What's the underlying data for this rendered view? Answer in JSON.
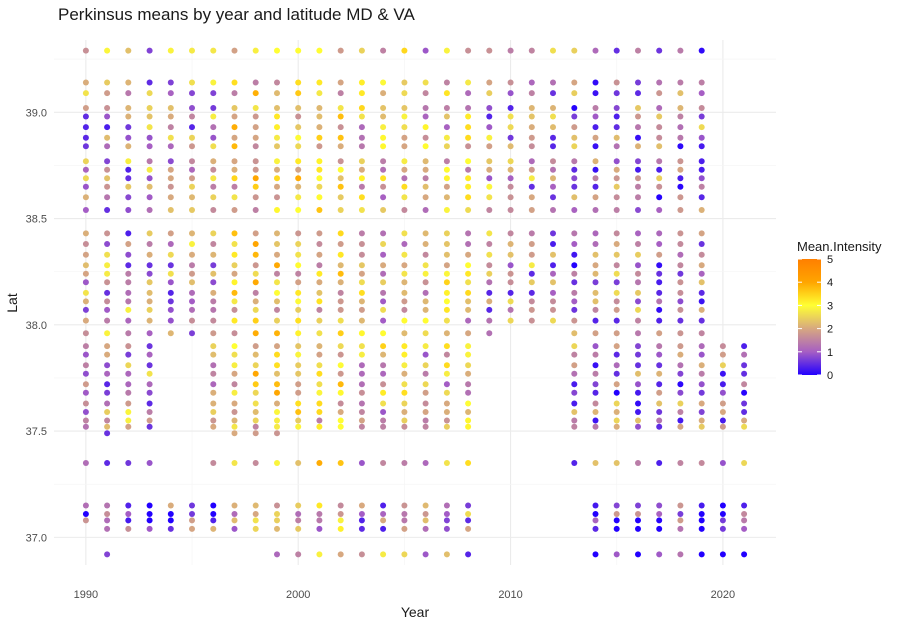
{
  "chart_data": {
    "type": "scatter",
    "title": "Perkinsus means by year and latitude MD & VA",
    "xlabel": "Year",
    "ylabel": "Lat",
    "xlim": [
      1988.5,
      2022.5
    ],
    "ylim": [
      36.87,
      39.34
    ],
    "x_ticks": [
      1990,
      2000,
      2010,
      2020
    ],
    "y_ticks": [
      37.0,
      37.5,
      38.0,
      38.5,
      39.0
    ],
    "y_tick_labels": [
      "37.0",
      "37.5",
      "38.0",
      "38.5",
      "39.0"
    ],
    "grid": true,
    "legend": {
      "title": "Mean.Intensity",
      "placement": "right",
      "min": 0,
      "max": 5,
      "ticks": [
        0,
        1,
        2,
        3,
        4,
        5
      ],
      "colors": [
        "#2200ff",
        "#a65ec4",
        "#d7a880",
        "#ffff33",
        "#ffa500",
        "#ff7f00"
      ]
    },
    "stations": [
      {
        "lat": 39.29,
        "years": [
          1990,
          2019
        ]
      },
      {
        "lat": 39.14,
        "years": [
          1990,
          2019
        ]
      },
      {
        "lat": 39.09,
        "years": [
          1990,
          2019
        ]
      },
      {
        "lat": 39.02,
        "years": [
          1990,
          2019
        ]
      },
      {
        "lat": 38.98,
        "years": [
          1990,
          2019
        ]
      },
      {
        "lat": 38.93,
        "years": [
          1990,
          2019
        ]
      },
      {
        "lat": 38.88,
        "years": [
          1990,
          2019
        ]
      },
      {
        "lat": 38.84,
        "years": [
          1990,
          2019
        ]
      },
      {
        "lat": 38.77,
        "years": [
          1990,
          2019
        ]
      },
      {
        "lat": 38.73,
        "years": [
          1990,
          2019
        ]
      },
      {
        "lat": 38.69,
        "years": [
          1990,
          2019
        ]
      },
      {
        "lat": 38.65,
        "years": [
          1990,
          2019
        ]
      },
      {
        "lat": 38.6,
        "years": [
          1990,
          2019
        ]
      },
      {
        "lat": 38.54,
        "years": [
          1990,
          2019
        ]
      },
      {
        "lat": 38.43,
        "years": [
          1990,
          2019
        ]
      },
      {
        "lat": 38.38,
        "years": [
          1990,
          2019
        ]
      },
      {
        "lat": 38.33,
        "years": [
          1990,
          2019
        ]
      },
      {
        "lat": 38.28,
        "years": [
          1990,
          2019
        ]
      },
      {
        "lat": 38.24,
        "years": [
          1990,
          2019
        ]
      },
      {
        "lat": 38.2,
        "years": [
          1990,
          2019
        ]
      },
      {
        "lat": 38.15,
        "years": [
          1990,
          2019
        ]
      },
      {
        "lat": 38.11,
        "years": [
          1990,
          2019
        ]
      },
      {
        "lat": 38.07,
        "years": [
          1990,
          2019
        ]
      },
      {
        "lat": 38.02,
        "years": [
          1990,
          2019
        ]
      },
      {
        "lat": 37.96,
        "years": [
          1990,
          2009,
          2013,
          2019
        ]
      },
      {
        "lat": 37.9,
        "years": [
          1990,
          1993,
          1996,
          2008,
          2013,
          2021
        ]
      },
      {
        "lat": 37.86,
        "years": [
          1990,
          1993,
          1996,
          2008,
          2013,
          2021
        ]
      },
      {
        "lat": 37.81,
        "years": [
          1990,
          1993,
          1996,
          2008,
          2013,
          2021
        ]
      },
      {
        "lat": 37.77,
        "years": [
          1990,
          1993,
          1996,
          2008,
          2013,
          2021
        ]
      },
      {
        "lat": 37.72,
        "years": [
          1990,
          1993,
          1996,
          2008,
          2013,
          2021
        ]
      },
      {
        "lat": 37.68,
        "years": [
          1990,
          1993,
          1996,
          2008,
          2013,
          2021
        ]
      },
      {
        "lat": 37.63,
        "years": [
          1990,
          1993,
          1996,
          2008,
          2013,
          2021
        ]
      },
      {
        "lat": 37.59,
        "years": [
          1990,
          1993,
          1996,
          2008,
          2013,
          2021
        ]
      },
      {
        "lat": 37.55,
        "years": [
          1990,
          1993,
          1996,
          2008,
          2013,
          2021
        ]
      },
      {
        "lat": 37.52,
        "years": [
          1990,
          1993,
          1996,
          2008,
          2013,
          2021
        ]
      },
      {
        "lat": 37.49,
        "years": [
          1991,
          1991,
          1997,
          1999
        ]
      },
      {
        "lat": 37.35,
        "years": [
          1990,
          1993,
          1996,
          2008,
          2013,
          2021
        ]
      },
      {
        "lat": 37.15,
        "years": [
          1990,
          2008,
          2014,
          2021
        ]
      },
      {
        "lat": 37.11,
        "years": [
          1990,
          2008,
          2014,
          2021
        ]
      },
      {
        "lat": 37.08,
        "years": [
          1990,
          2008,
          2014,
          2021
        ]
      },
      {
        "lat": 37.04,
        "years": [
          1991,
          2008,
          2014,
          2021
        ]
      },
      {
        "lat": 36.92,
        "years": [
          1991,
          1991,
          1999,
          2008,
          2014,
          2021
        ]
      }
    ],
    "seed": 20240601
  }
}
